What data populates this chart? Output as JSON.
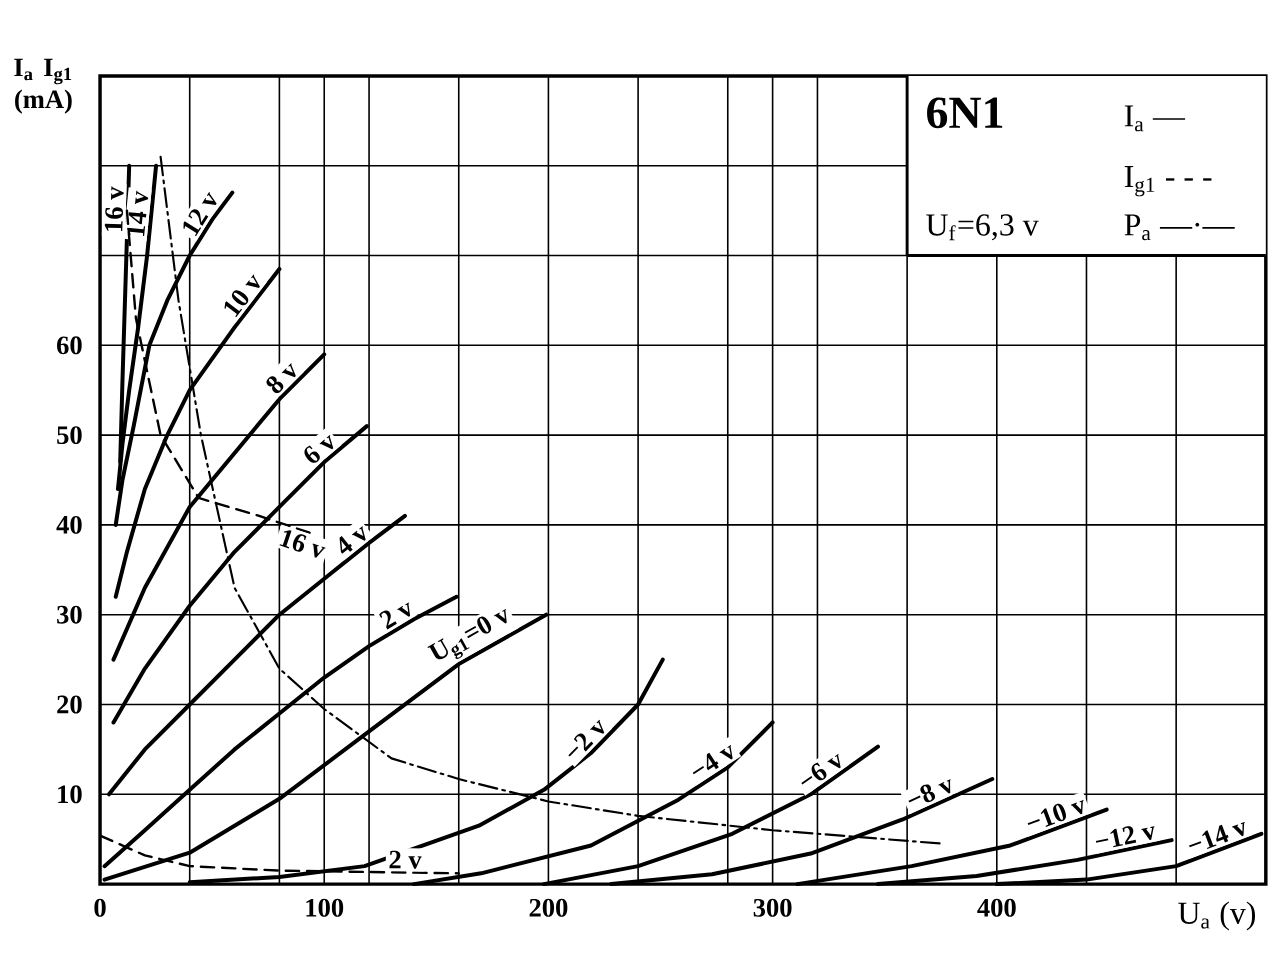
{
  "chart_data": {
    "type": "line",
    "title": "6N1",
    "xlabel": "U$_{a}$ (v)",
    "ylabel": "I$_{a}$ I$_{g1}$ (mA)",
    "annotations": [
      "I$_{a}$ —",
      "I$_{g1}$ - - -",
      "U$_{f}$=6,3 v",
      "P$_{a}$ —·—"
    ],
    "xlim": [
      0,
      520
    ],
    "ylim": [
      0,
      90
    ],
    "xticks": [
      0,
      {
        "value": 40,
        "label": null
      },
      {
        "value": 80,
        "label": null
      },
      100,
      {
        "value": 120,
        "label": null
      },
      {
        "value": 160,
        "label": null
      },
      200,
      {
        "value": 240,
        "label": null
      },
      {
        "value": 280,
        "label": null
      },
      300,
      {
        "value": 320,
        "label": null
      },
      {
        "value": 360,
        "label": null
      },
      400,
      {
        "value": 440,
        "label": null
      },
      {
        "value": 480,
        "label": null
      },
      {
        "value": 520,
        "label": null
      }
    ],
    "yticks": [
      {
        "value": 0,
        "label": null
      },
      10,
      20,
      30,
      40,
      50,
      60,
      {
        "value": 70,
        "label": null
      },
      {
        "value": 80,
        "label": null
      }
    ],
    "grid": true,
    "series": [
      {
        "name": "16 v",
        "color": "#000000",
        "line_style": "solid",
        "x": [
          9,
          10,
          11,
          12,
          13
        ],
        "values": [
          47,
          56,
          64,
          72,
          80
        ]
      },
      {
        "name": "14 v",
        "color": "#000000",
        "line_style": "solid",
        "x": [
          8,
          10,
          13,
          17,
          21,
          25
        ],
        "values": [
          44,
          49,
          55,
          62,
          70,
          80
        ]
      },
      {
        "name": "12 v",
        "color": "#000000",
        "line_style": "solid",
        "x": [
          7,
          10,
          15,
          22,
          30,
          40,
          50,
          59
        ],
        "values": [
          40,
          45,
          51,
          60,
          65,
          70,
          74,
          77
        ]
      },
      {
        "name": "10 v",
        "color": "#000000",
        "line_style": "solid",
        "x": [
          7,
          12,
          20,
          30,
          40,
          60,
          80
        ],
        "values": [
          32,
          37,
          44,
          50,
          55,
          62,
          68.5
        ]
      },
      {
        "name": "8 v",
        "color": "#000000",
        "line_style": "solid",
        "x": [
          6,
          20,
          40,
          60,
          80,
          100
        ],
        "values": [
          25,
          33,
          42,
          48,
          54,
          59
        ]
      },
      {
        "name": "6 v",
        "color": "#000000",
        "line_style": "solid",
        "x": [
          6,
          20,
          40,
          60,
          80,
          100,
          119
        ],
        "values": [
          18,
          24,
          31,
          37,
          42,
          47,
          51
        ]
      },
      {
        "name": "4 v",
        "color": "#000000",
        "line_style": "solid",
        "x": [
          4,
          20,
          40,
          60,
          80,
          100,
          120,
          136
        ],
        "values": [
          10,
          15,
          20,
          25,
          30,
          34,
          38,
          41
        ]
      },
      {
        "name": "2 v",
        "color": "#000000",
        "line_style": "solid",
        "x": [
          2,
          20,
          40,
          60,
          80,
          100,
          120,
          140,
          159
        ],
        "values": [
          2,
          6,
          10.5,
          15,
          19,
          23,
          26.5,
          29.5,
          32
        ]
      },
      {
        "name": "U$_{g1}$=0 v",
        "color": "#000000",
        "line_style": "solid",
        "x": [
          2,
          40,
          80,
          120,
          160,
          199
        ],
        "values": [
          0.5,
          3.5,
          9.5,
          17,
          24.5,
          30
        ]
      },
      {
        "name": "−2 v",
        "color": "#000000",
        "line_style": "solid",
        "x": [
          40,
          80,
          118,
          169,
          198,
          219,
          240,
          251
        ],
        "values": [
          0.2,
          0.8,
          2,
          6.5,
          10.5,
          14.6,
          20,
          25
        ]
      },
      {
        "name": "−4 v",
        "color": "#000000",
        "line_style": "solid",
        "x": [
          140,
          170,
          219,
          258,
          280,
          300
        ],
        "values": [
          0,
          1.2,
          4.3,
          9.4,
          13,
          18
        ]
      },
      {
        "name": "−6 v",
        "color": "#000000",
        "line_style": "solid",
        "x": [
          198,
          240,
          282,
          317,
          347
        ],
        "values": [
          0,
          2,
          5.6,
          10,
          15.3
        ]
      },
      {
        "name": "−8 v",
        "color": "#000000",
        "line_style": "solid",
        "x": [
          228,
          273,
          317,
          358,
          398
        ],
        "values": [
          0,
          1.1,
          3.4,
          7.2,
          11.7
        ]
      },
      {
        "name": "−10 v",
        "color": "#000000",
        "line_style": "solid",
        "x": [
          311,
          362,
          406,
          449
        ],
        "values": [
          0,
          2,
          4.3,
          8.3
        ]
      },
      {
        "name": "−12 v",
        "color": "#000000",
        "line_style": "solid",
        "x": [
          347,
          391,
          436,
          478
        ],
        "values": [
          0,
          0.9,
          2.7,
          4.9
        ]
      },
      {
        "name": "−14 v",
        "color": "#000000",
        "line_style": "solid",
        "x": [
          400,
          440,
          480,
          518
        ],
        "values": [
          0,
          0.5,
          2,
          5.6
        ]
      },
      {
        "name": "16 v",
        "color": "#000000",
        "line_style": "dashed",
        "x": [
          12,
          16,
          27,
          44,
          71,
          95
        ],
        "values": [
          75,
          63,
          50,
          43,
          41,
          39
        ]
      },
      {
        "name": "2 v",
        "color": "#000000",
        "line_style": "dashed",
        "x": [
          0,
          20,
          40,
          80,
          160
        ],
        "values": [
          5.4,
          3.2,
          2,
          1.5,
          1.2
        ]
      },
      {
        "color": "#000000",
        "line_style": "dashdot",
        "x": [
          27,
          35,
          45,
          60,
          80,
          100,
          130,
          160,
          200,
          240,
          300,
          376
        ],
        "values": [
          81,
          65,
          50,
          33,
          24,
          19.5,
          14,
          11.7,
          9.2,
          7.6,
          6,
          4.5
        ]
      }
    ]
  }
}
